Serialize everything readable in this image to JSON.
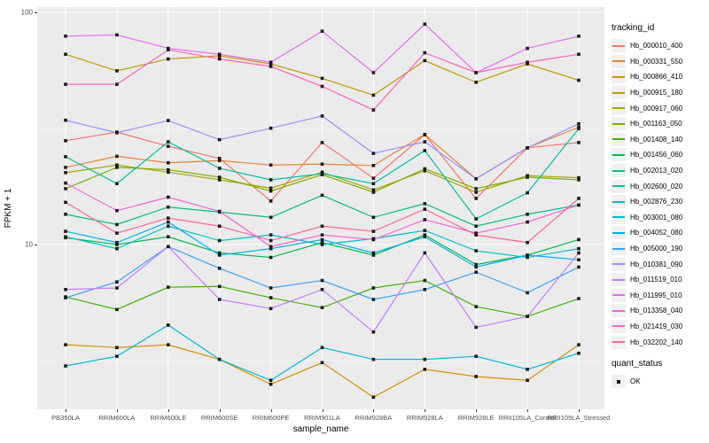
{
  "chart_data": {
    "type": "line",
    "title": "",
    "xlabel": "sample_name",
    "ylabel": "FPKM + 1",
    "y_scale": "log10",
    "ylim": [
      1.95,
      105
    ],
    "y_tick_labels": [
      "100",
      "10"
    ],
    "y_tick_values": [
      100,
      10
    ],
    "y_minor_gridlines": [
      31.62,
      3.162
    ],
    "grid": "white major/minor gridlines on grey panel",
    "legend_position": "right",
    "marker": "small black square",
    "categories": [
      "PB350LA",
      "RRIM600LA",
      "RRIM600LE",
      "RRIM600SE",
      "RRIM600PE",
      "RRIM901LA",
      "RRIM928BA",
      "RRIM928LA",
      "RRIM928LE",
      "RRII105LA_Control",
      "RRII105LA_Stressed"
    ],
    "series": [
      {
        "name": "Hb_000010_400",
        "color": "#F8766D",
        "values": [
          28,
          30.5,
          26.5,
          23.5,
          15.4,
          27.5,
          19.3,
          29.7,
          15.8,
          26.1,
          27.5
        ]
      },
      {
        "name": "Hb_000331_550",
        "color": "#EA8331",
        "values": [
          21.5,
          24,
          22.5,
          23,
          22,
          22.2,
          21.9,
          29.8,
          19.2,
          26.1,
          32
        ]
      },
      {
        "name": "Hb_000866_410",
        "color": "#D89000",
        "values": [
          3.7,
          3.6,
          3.7,
          3.2,
          2.5,
          3.1,
          2.2,
          2.9,
          2.7,
          2.6,
          3.7
        ]
      },
      {
        "name": "Hb_000915_180",
        "color": "#C09B00",
        "values": [
          66,
          56,
          63,
          65,
          60,
          52,
          44,
          62,
          50,
          60,
          51
        ]
      },
      {
        "name": "Hb_000917_060",
        "color": "#A3A500",
        "values": [
          20.4,
          22,
          20.5,
          19,
          17.5,
          20.5,
          17.2,
          20.8,
          16.8,
          19.8,
          19.4
        ]
      },
      {
        "name": "Hb_001163_050",
        "color": "#7CAE00",
        "values": [
          17.4,
          21.5,
          21,
          19.5,
          17,
          20,
          16.8,
          21.2,
          17.4,
          19.5,
          19
        ]
      },
      {
        "name": "Hb_001408_140",
        "color": "#39B600",
        "values": [
          5.95,
          5.25,
          6.55,
          6.6,
          5.9,
          5.35,
          6.5,
          7,
          5.4,
          4.9,
          5.85
        ]
      },
      {
        "name": "Hb_001456_060",
        "color": "#00BB4E",
        "values": [
          10.7,
          10,
          10.8,
          9.2,
          8.8,
          10.2,
          9,
          11,
          8.2,
          9,
          10.5
        ]
      },
      {
        "name": "Hb_002013_020",
        "color": "#00BF7D",
        "values": [
          13.5,
          12.2,
          14.5,
          13.8,
          13.1,
          16.3,
          13.1,
          15,
          12,
          13.5,
          14.8
        ]
      },
      {
        "name": "Hb_002600_020",
        "color": "#00C1A3",
        "values": [
          23.9,
          18.3,
          27.7,
          21.3,
          19,
          20.2,
          18.3,
          25.4,
          12.9,
          16.7,
          31.6
        ]
      },
      {
        "name": "Hb_002876_230",
        "color": "#00BFC4",
        "values": [
          10.8,
          9.6,
          12,
          10.4,
          11,
          10,
          10.6,
          11.5,
          9.4,
          8.8,
          9.6
        ]
      },
      {
        "name": "Hb_003001_080",
        "color": "#00BAE0",
        "values": [
          3,
          3.3,
          4.5,
          3.2,
          2.6,
          3.6,
          3.2,
          3.2,
          3.3,
          2.9,
          3.4
        ]
      },
      {
        "name": "Hb_004052_080",
        "color": "#00B0F6",
        "values": [
          11.4,
          10.2,
          12.5,
          9,
          9.6,
          10.5,
          9.2,
          10.8,
          8,
          9,
          8.6
        ]
      },
      {
        "name": "Hb_005000_190",
        "color": "#35A2FF",
        "values": [
          5.9,
          6.9,
          9.8,
          7.9,
          6.5,
          7,
          5.8,
          6.4,
          7.6,
          6.2,
          8
        ]
      },
      {
        "name": "Hb_010381_090",
        "color": "#9590FF",
        "values": [
          34.3,
          30.3,
          34.2,
          28.3,
          31.7,
          35.8,
          24.7,
          27.7,
          19.2,
          26.1,
          33.1
        ]
      },
      {
        "name": "Hb_011519_010",
        "color": "#C77CFF",
        "values": [
          6.4,
          6.5,
          9.8,
          5.8,
          5.3,
          6.4,
          4.2,
          9.2,
          4.4,
          4.9,
          9.2
        ]
      },
      {
        "name": "Hb_011995_010",
        "color": "#E76BF3",
        "values": [
          79,
          80,
          70,
          66,
          61,
          83,
          55,
          89,
          55,
          70,
          79
        ]
      },
      {
        "name": "Hb_013358_040",
        "color": "#FA62DB",
        "values": [
          18.4,
          14,
          16,
          13.9,
          9.8,
          11,
          10.5,
          12.8,
          11.2,
          12.5,
          14.8
        ]
      },
      {
        "name": "Hb_021419_030",
        "color": "#FF62BC",
        "values": [
          49,
          49,
          69,
          63,
          58.5,
          48,
          38,
          67,
          55,
          61,
          66
        ]
      },
      {
        "name": "Hb_032202_140",
        "color": "#FF6598",
        "values": [
          15.2,
          11.2,
          13,
          12,
          10.4,
          12,
          11.4,
          14.2,
          11,
          10.2,
          15.8
        ]
      }
    ]
  },
  "legend": {
    "tracking_title": "tracking_id",
    "quant_title": "quant_status",
    "quant_items": [
      "OK"
    ]
  },
  "panel": {
    "background": "#EBEBEB",
    "gridline_color": "#FFFFFF",
    "tick_color": "#333333",
    "tick_label_color": "#4D4D4D",
    "marker_color": "#1A1A1A"
  }
}
